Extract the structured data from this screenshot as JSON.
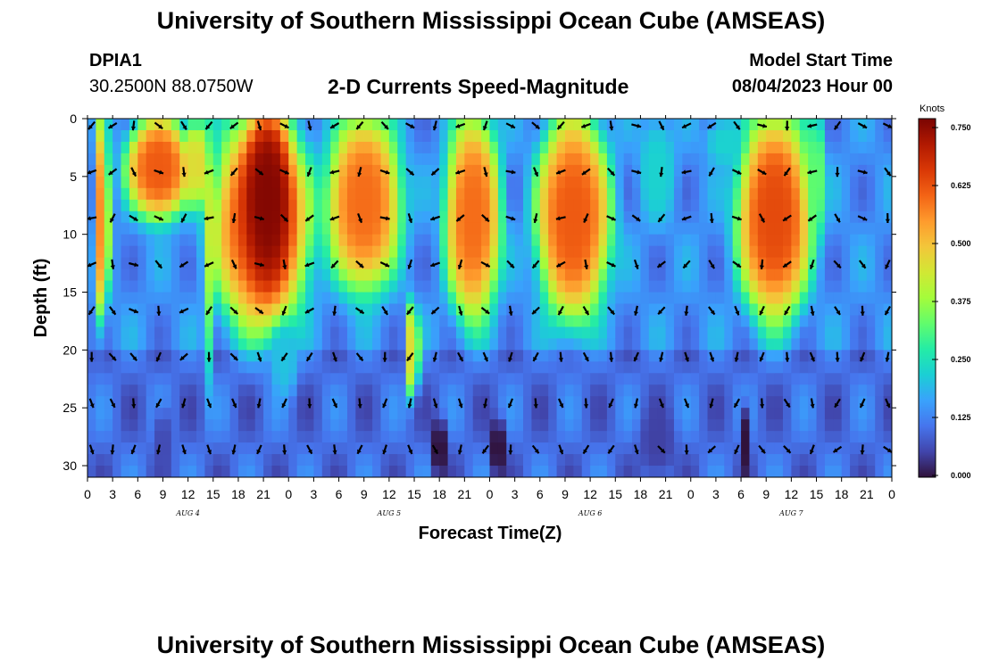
{
  "header": {
    "title_top": "University of Southern Mississippi Ocean Cube (AMSEAS)",
    "title_bottom": "University of Southern Mississippi Ocean Cube (AMSEAS)",
    "station": "DPIA1",
    "coords": "30.2500N  88.0750W",
    "subtitle": "2-D Currents Speed-Magnitude",
    "model_label": "Model Start Time",
    "model_time": "08/04/2023 Hour 00"
  },
  "colors": {
    "colormap": [
      "#30123b",
      "#4145ab",
      "#4675ed",
      "#39a2fc",
      "#1bcfd4",
      "#24eca6",
      "#61fc6c",
      "#a4fc3b",
      "#d1e834",
      "#f3c63a",
      "#fe9b2d",
      "#f36315",
      "#d93806",
      "#b11901",
      "#7a0402"
    ],
    "arrow": "#000000"
  },
  "chart_data": {
    "type": "heatmap",
    "title": "2-D Currents Speed-Magnitude",
    "xlabel": "Forecast Time(Z)",
    "ylabel": "Depth (ft)",
    "x_tick_labels": [
      "0",
      "3",
      "6",
      "9",
      "12",
      "15",
      "18",
      "21",
      "0",
      "3",
      "6",
      "9",
      "12",
      "15",
      "18",
      "21",
      "0",
      "3",
      "6",
      "9",
      "12",
      "15",
      "18",
      "21",
      "0",
      "3",
      "6",
      "9",
      "12",
      "15",
      "18",
      "21",
      "0"
    ],
    "x_hours_range": [
      0,
      96
    ],
    "day_labels": [
      {
        "label": "AUG 4",
        "hour": 12
      },
      {
        "label": "AUG 5",
        "hour": 36
      },
      {
        "label": "AUG 6",
        "hour": 60
      },
      {
        "label": "AUG 7",
        "hour": 84
      }
    ],
    "y_ticks": [
      0,
      5,
      10,
      15,
      20,
      25,
      30
    ],
    "ylim": [
      0,
      31
    ],
    "colorbar": {
      "units": "Knots",
      "range": [
        0,
        0.75
      ],
      "ticks": [
        "0.000",
        "0.125",
        "0.250",
        "0.375",
        "0.500",
        "0.625",
        "0.750"
      ]
    },
    "speed_features": [
      {
        "h0": 1,
        "h1": 2.5,
        "d0": 0,
        "d1": 17,
        "v": 0.55
      },
      {
        "h0": 5,
        "h1": 12,
        "d0": 0,
        "d1": 8.5,
        "v": 0.6
      },
      {
        "h0": 12,
        "h1": 14,
        "d0": 0,
        "d1": 7.5,
        "v": 0.45
      },
      {
        "h0": 14,
        "h1": 15,
        "d0": 0,
        "d1": 22,
        "v": 0.32
      },
      {
        "h0": 15.5,
        "h1": 26,
        "d0": 0,
        "d1": 18,
        "v": 0.62
      },
      {
        "h0": 19,
        "h1": 24,
        "d0": 0,
        "d1": 14,
        "v": 0.74
      },
      {
        "h0": 22,
        "h1": 25,
        "d0": 18,
        "d1": 24,
        "v": 0.2
      },
      {
        "h0": 29,
        "h1": 37,
        "d0": 0,
        "d1": 14.5,
        "v": 0.58
      },
      {
        "h0": 38,
        "h1": 39.5,
        "d0": 16,
        "d1": 24,
        "v": 0.45
      },
      {
        "h0": 43,
        "h1": 49,
        "d0": 0,
        "d1": 17,
        "v": 0.58
      },
      {
        "h0": 54,
        "h1": 62,
        "d0": 0,
        "d1": 17,
        "v": 0.6
      },
      {
        "h0": 66,
        "h1": 70,
        "d0": 0,
        "d1": 9,
        "v": 0.22
      },
      {
        "h0": 78,
        "h1": 86,
        "d0": 0,
        "d1": 17,
        "v": 0.62
      },
      {
        "h0": 86,
        "h1": 88,
        "d0": 0,
        "d1": 10,
        "v": 0.32
      },
      {
        "h0": 74,
        "h1": 78,
        "d0": 0,
        "d1": 4,
        "v": 0.22
      },
      {
        "h0": 48,
        "h1": 50,
        "d0": 26,
        "d1": 31,
        "v": 0.0
      },
      {
        "h0": 41,
        "h1": 43,
        "d0": 26,
        "d1": 31,
        "v": 0.0
      },
      {
        "h0": 78,
        "h1": 79,
        "d0": 25,
        "d1": 31,
        "v": 0.0
      },
      {
        "h0": 8,
        "h1": 10,
        "d0": 25,
        "d1": 31,
        "v": 0.06
      },
      {
        "h0": 66,
        "h1": 70,
        "d0": 25,
        "d1": 31,
        "v": 0.05
      }
    ],
    "arrow_rows_depth": [
      0,
      4,
      8,
      12,
      16,
      20,
      24,
      28
    ],
    "arrow_cols_hours": [
      0.5,
      3,
      5.5,
      8.5,
      11.5,
      14.5,
      17.5,
      20.5,
      23.5,
      26.5,
      29.5,
      32.5,
      35.5,
      38.5,
      41.5,
      44.5,
      47.5,
      50.5,
      53.5,
      56.5,
      59.5,
      62.5,
      65.5,
      68.5,
      71.5,
      74.5,
      77.5,
      80.5,
      83.5,
      86.5,
      89.5,
      92.5,
      95.5
    ]
  }
}
